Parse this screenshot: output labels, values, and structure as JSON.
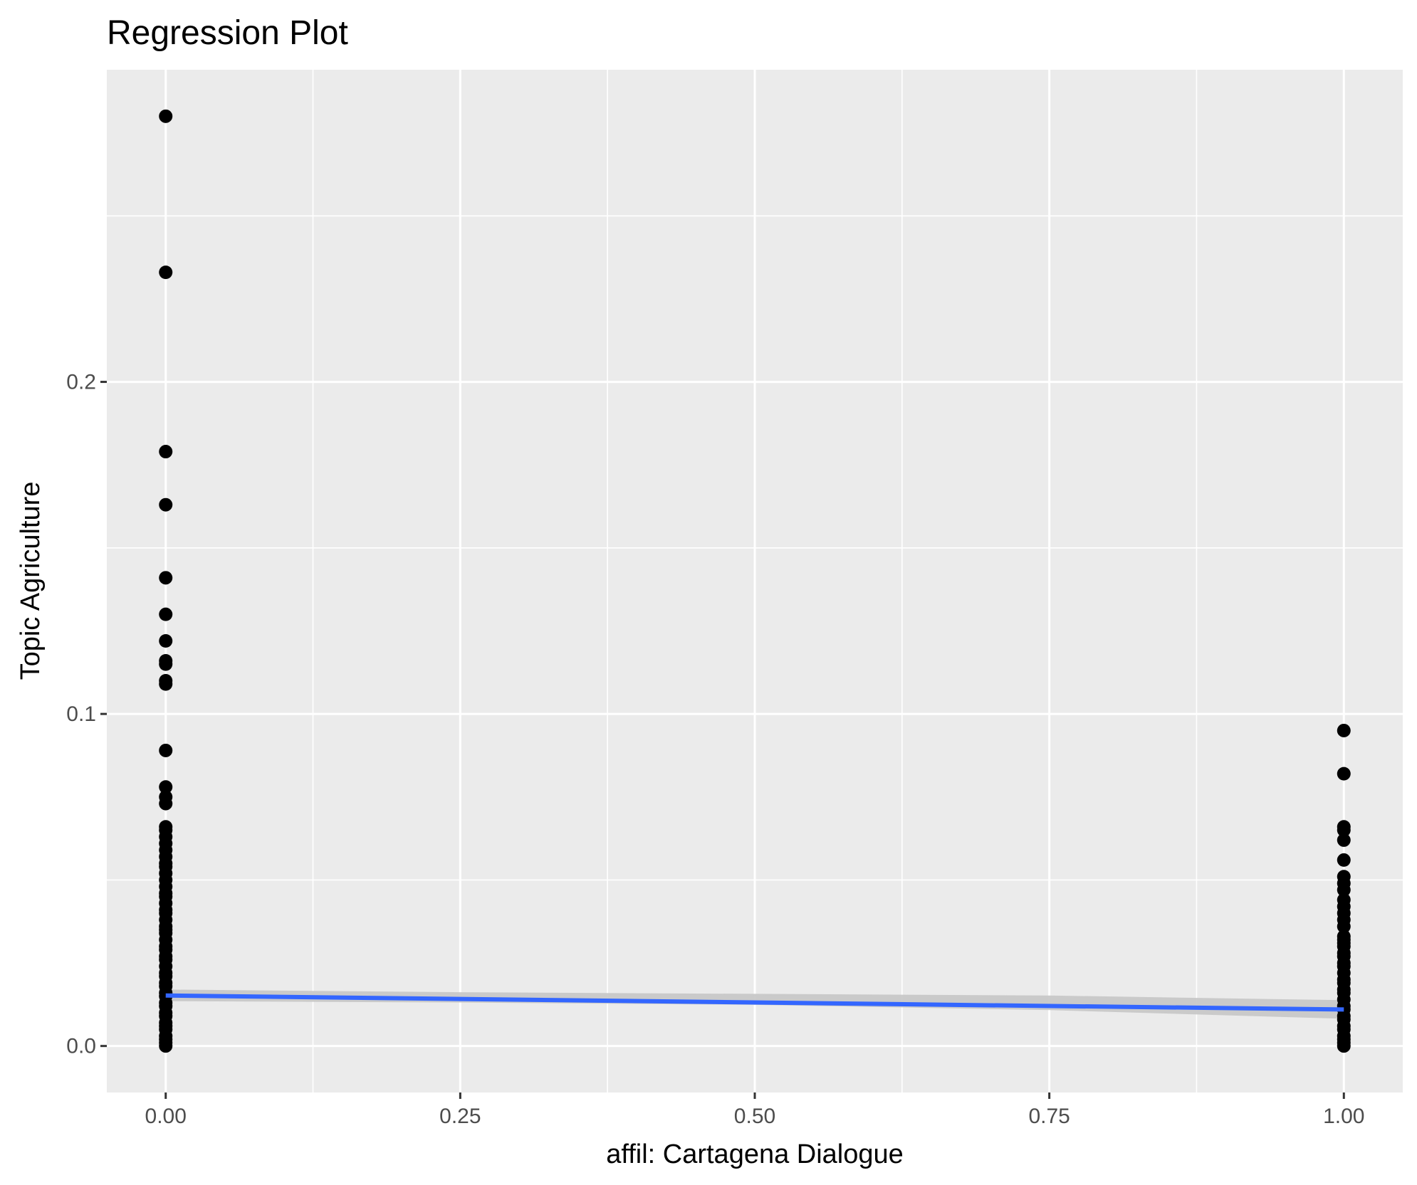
{
  "chart_data": {
    "type": "scatter",
    "title": "Regression Plot",
    "xlabel": "affil: Cartagena Dialogue",
    "ylabel": "Topic Agriculture",
    "xlim": [
      -0.05,
      1.05
    ],
    "ylim": [
      -0.014,
      0.294
    ],
    "x_ticks": [
      0.0,
      0.25,
      0.5,
      0.75,
      1.0
    ],
    "x_tick_labels": [
      "0.00",
      "0.25",
      "0.50",
      "0.75",
      "1.00"
    ],
    "y_ticks": [
      0.0,
      0.1,
      0.2
    ],
    "y_tick_labels": [
      "0.0",
      "0.1",
      "0.2"
    ],
    "grid": true,
    "legend": "none",
    "colors": {
      "panel_background": "#ebebeb",
      "grid": "#ffffff",
      "points": "#000000",
      "regression_line": "#3366ff",
      "confidence_band": "#c8c8c8"
    },
    "series": [
      {
        "x": 0,
        "y": [
          0.28,
          0.233,
          0.179,
          0.163,
          0.141,
          0.13,
          0.122,
          0.116,
          0.115,
          0.11,
          0.109,
          0.089,
          0.078,
          0.075,
          0.073,
          0.066,
          0.065,
          0.063,
          0.061,
          0.059,
          0.057,
          0.055,
          0.054,
          0.052,
          0.05,
          0.048,
          0.046,
          0.045,
          0.043,
          0.041,
          0.04,
          0.038,
          0.036,
          0.035,
          0.034,
          0.032,
          0.03,
          0.029,
          0.027,
          0.026,
          0.024,
          0.022,
          0.021,
          0.019,
          0.018,
          0.016,
          0.015,
          0.013,
          0.012,
          0.01,
          0.009,
          0.007,
          0.006,
          0.005,
          0.003,
          0.002,
          0.001,
          0.0
        ]
      },
      {
        "x": 1,
        "y": [
          0.095,
          0.082,
          0.066,
          0.065,
          0.062,
          0.056,
          0.051,
          0.049,
          0.047,
          0.044,
          0.042,
          0.04,
          0.038,
          0.036,
          0.033,
          0.032,
          0.031,
          0.03,
          0.028,
          0.027,
          0.025,
          0.024,
          0.022,
          0.02,
          0.019,
          0.017,
          0.016,
          0.014,
          0.012,
          0.011,
          0.009,
          0.008,
          0.006,
          0.005,
          0.003,
          0.002,
          0.001,
          0.0
        ]
      }
    ],
    "regression_line": {
      "x": [
        0,
        1
      ],
      "y": [
        0.0152,
        0.011
      ]
    },
    "confidence_band": {
      "x": [
        0,
        0.25,
        0.5,
        0.75,
        1
      ],
      "lower": [
        0.0135,
        0.0131,
        0.0124,
        0.0108,
        0.0082
      ],
      "upper": [
        0.017,
        0.0162,
        0.0157,
        0.0152,
        0.0138
      ]
    }
  }
}
